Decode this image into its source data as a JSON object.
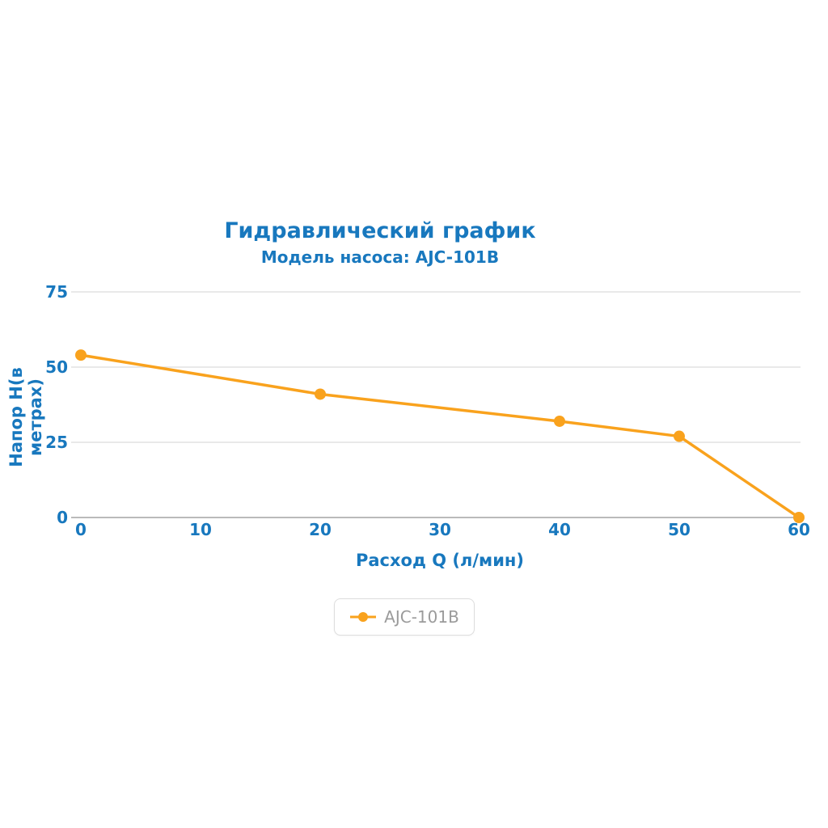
{
  "chart": {
    "title": "Гидравлический график",
    "subtitle": "Модель насоса: AJC-101B",
    "xlabel": "Расход Q (л/мин)",
    "ylabel": "Напор H(в метрах)",
    "legend_label": "AJC-101B"
  },
  "chart_data": {
    "type": "line",
    "title": "Гидравлический график",
    "subtitle": "Модель насоса: AJC-101B",
    "xlabel": "Расход Q (л/мин)",
    "ylabel": "Напор H(в метрах)",
    "series": [
      {
        "name": "AJC-101B",
        "points": [
          [
            0,
            54
          ],
          [
            20,
            41
          ],
          [
            40,
            32
          ],
          [
            50,
            27
          ],
          [
            60,
            0
          ]
        ]
      }
    ],
    "x_ticks": [
      0,
      10,
      20,
      30,
      40,
      50,
      60
    ],
    "y_ticks": [
      0,
      25,
      50,
      75
    ],
    "xlim": [
      0,
      60
    ],
    "ylim": [
      0,
      75
    ],
    "grid": "horizontal",
    "legend_position": "bottom",
    "colors": {
      "line": "#F9A21D",
      "marker": "#F9A21D",
      "title_text": "#1878BE",
      "axis_text": "#1878BE",
      "grid": "#DCDCDC",
      "axis_line": "#A3A3A3",
      "legend_text": "#9B9B9B",
      "legend_border": "#DDDDDD"
    }
  }
}
